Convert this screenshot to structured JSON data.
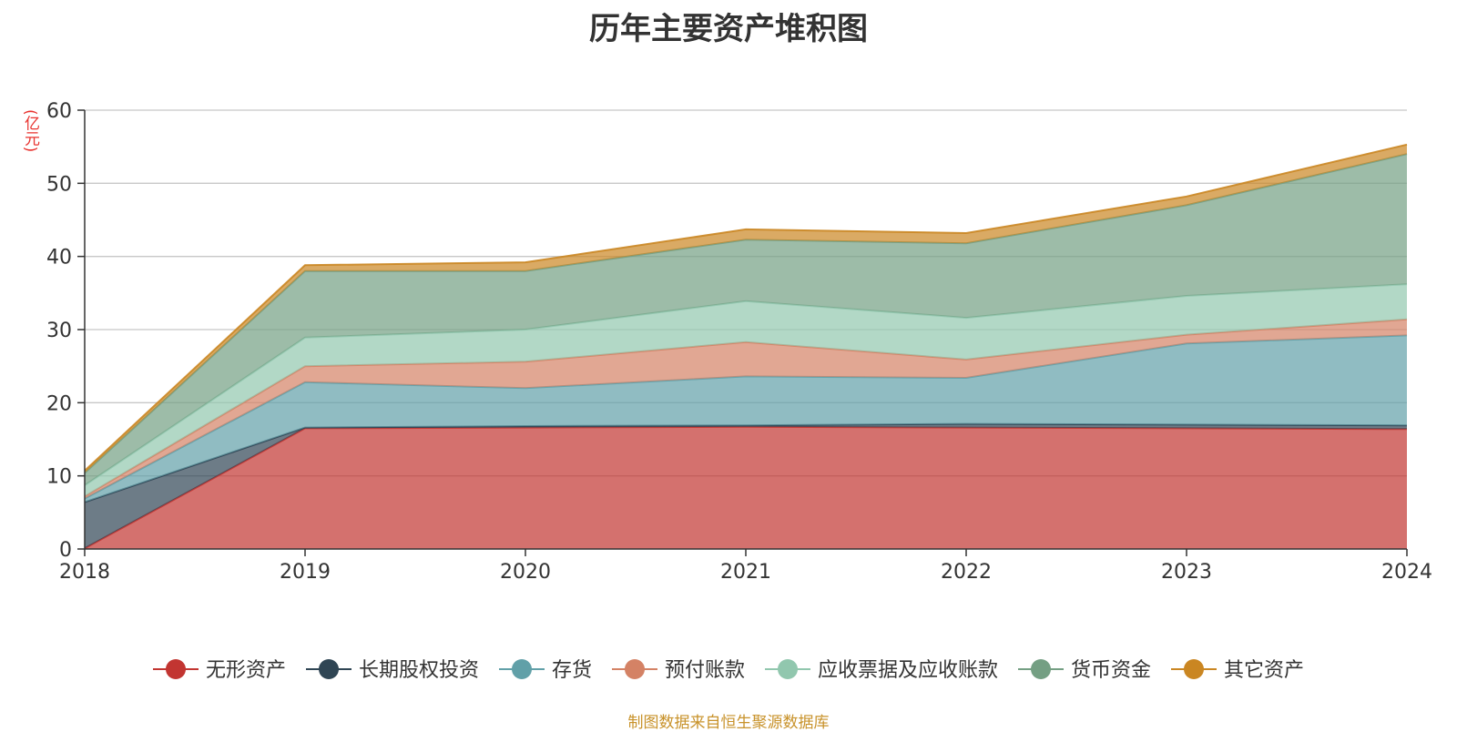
{
  "chart_data": {
    "type": "area",
    "stacked": true,
    "title": "历年主要资产堆积图",
    "unit_label": "(亿元)",
    "x": [
      "2018",
      "2019",
      "2020",
      "2021",
      "2022",
      "2023",
      "2024"
    ],
    "ylim": [
      0,
      60
    ],
    "yticks": [
      0,
      10,
      20,
      30,
      40,
      50,
      60
    ],
    "grid": true,
    "legend_position": "bottom",
    "series": [
      {
        "name": "无形资产",
        "color": "#c23531",
        "values": [
          0.1,
          16.5,
          16.6,
          16.7,
          16.6,
          16.5,
          16.4
        ]
      },
      {
        "name": "长期股权投资",
        "color": "#2f4554",
        "values": [
          6.3,
          0.1,
          0.2,
          0.2,
          0.5,
          0.5,
          0.5
        ]
      },
      {
        "name": "存货",
        "color": "#61a0a8",
        "values": [
          0.5,
          6.2,
          5.2,
          6.7,
          6.3,
          11.1,
          12.3
        ]
      },
      {
        "name": "预付账款",
        "color": "#d48265",
        "values": [
          0.3,
          2.2,
          3.6,
          4.7,
          2.5,
          1.2,
          2.2
        ]
      },
      {
        "name": "应收票据及应收账款",
        "color": "#91c7ae",
        "values": [
          1.5,
          3.9,
          4.4,
          5.6,
          5.7,
          5.3,
          4.8
        ]
      },
      {
        "name": "货币资金",
        "color": "#749f83",
        "values": [
          1.7,
          9.1,
          8.0,
          8.4,
          10.2,
          12.4,
          17.8
        ]
      },
      {
        "name": "其它资产",
        "color": "#ca8622",
        "values": [
          0.3,
          0.8,
          1.2,
          1.4,
          1.4,
          1.2,
          1.3
        ]
      }
    ]
  },
  "source_note": "制图数据来自恒生聚源数据库"
}
